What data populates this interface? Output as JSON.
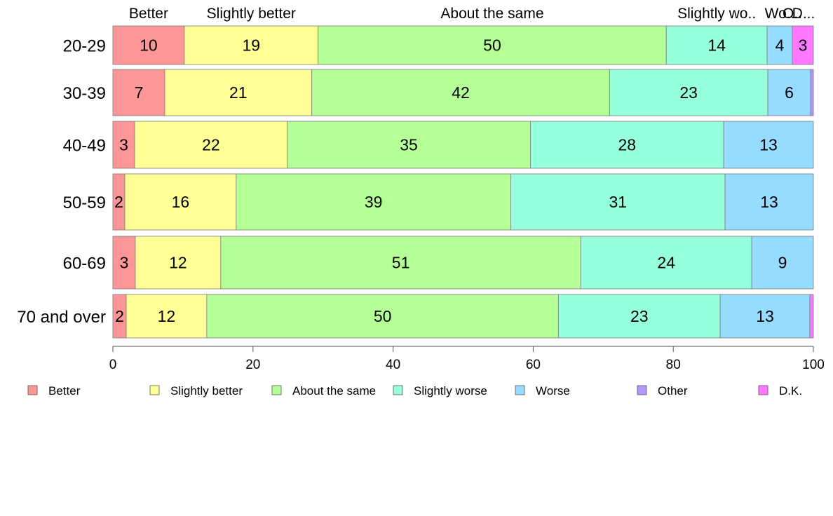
{
  "chart_data": {
    "type": "bar",
    "orientation": "horizontal",
    "stacked": true,
    "title": "",
    "xlabel": "",
    "ylabel": "",
    "xlim": [
      0,
      100
    ],
    "x_ticks": [
      "0",
      "20",
      "40",
      "60",
      "80",
      "100"
    ],
    "categories": [
      "20-29",
      "30-39",
      "40-49",
      "50-59",
      "60-69",
      "70 and over"
    ],
    "top_labels": [
      "Better",
      "Slightly better",
      "About the same",
      "Slightly wo..",
      "Wo..",
      "O..",
      "D..."
    ],
    "series": [
      {
        "name": "Better",
        "color": "#FF9696",
        "values": [
          10.2,
          7.4,
          3.1,
          1.7,
          3.2,
          1.9
        ]
      },
      {
        "name": "Slightly better",
        "color": "#FFFF96",
        "values": [
          19.1,
          21.0,
          21.8,
          15.9,
          12.2,
          11.5
        ]
      },
      {
        "name": "About the same",
        "color": "#B4FF96",
        "values": [
          49.7,
          42.5,
          34.7,
          39.2,
          51.4,
          50.2
        ]
      },
      {
        "name": "Slightly worse",
        "color": "#96FFDC",
        "values": [
          14.4,
          22.6,
          27.6,
          30.6,
          24.4,
          23.1
        ]
      },
      {
        "name": "Worse",
        "color": "#96DCFF",
        "values": [
          3.6,
          6.1,
          12.8,
          12.6,
          8.8,
          12.8
        ]
      },
      {
        "name": "Other",
        "color": "#B496FF",
        "values": [
          0.0,
          0.4,
          0.0,
          0.0,
          0.0,
          0.0
        ]
      },
      {
        "name": "D.K.",
        "color": "#FF78FF",
        "values": [
          3.0,
          0.0,
          0.0,
          0.0,
          0.0,
          0.5
        ]
      }
    ],
    "data_labels": [
      [
        "10",
        "19",
        "50",
        "14",
        "4",
        "",
        "3"
      ],
      [
        "7",
        "21",
        "42",
        "23",
        "6",
        "",
        ""
      ],
      [
        "3",
        "22",
        "35",
        "28",
        "13",
        "",
        ""
      ],
      [
        "2",
        "16",
        "39",
        "31",
        "13",
        "",
        ""
      ],
      [
        "3",
        "12",
        "51",
        "24",
        "9",
        "",
        ""
      ],
      [
        "2",
        "12",
        "50",
        "23",
        "13",
        "",
        ""
      ]
    ],
    "legend_position": "bottom",
    "grid": false
  }
}
